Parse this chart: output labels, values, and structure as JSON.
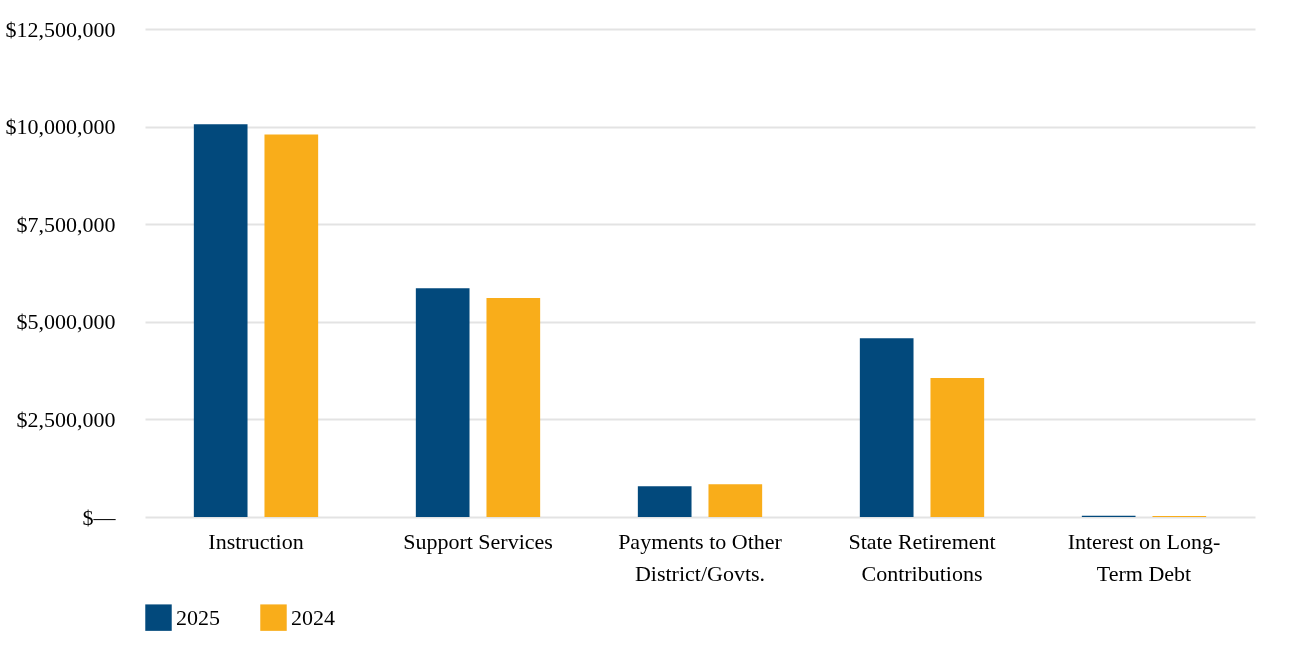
{
  "chart_data": {
    "type": "bar",
    "categories": [
      "Instruction",
      "Support Services",
      "Payments to Other District/Govts.",
      "State Retirement Contributions",
      "Interest on Long-Term Debt"
    ],
    "series": [
      {
        "name": "2025",
        "color": "#02497c",
        "values": [
          10060000,
          5860000,
          790000,
          4580000,
          30000
        ]
      },
      {
        "name": "2024",
        "color": "#f9ad1a",
        "values": [
          9800000,
          5610000,
          840000,
          3560000,
          25000
        ]
      }
    ],
    "ylim": [
      0,
      12500000
    ],
    "yticks": [
      {
        "value": 0,
        "label": "$—"
      },
      {
        "value": 2500000,
        "label": "$2,500,000"
      },
      {
        "value": 5000000,
        "label": "$5,000,000"
      },
      {
        "value": 7500000,
        "label": "$7,500,000"
      },
      {
        "value": 10000000,
        "label": "$10,000,000"
      },
      {
        "value": 12500000,
        "label": "$12,500,000"
      }
    ],
    "grid": "y",
    "legend": "bottom"
  }
}
